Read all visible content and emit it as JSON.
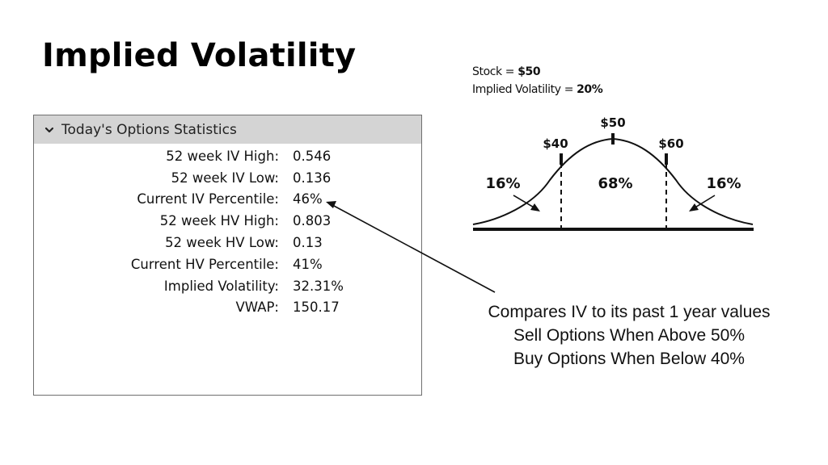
{
  "slide": {
    "title": "Implied Volatility"
  },
  "options_panel": {
    "header": "Today's Options Statistics",
    "rows": [
      {
        "label": "52 week IV High:",
        "value": "0.546"
      },
      {
        "label": "52 week IV Low:",
        "value": "0.136"
      },
      {
        "label": "Current IV Percentile:",
        "value": "46%"
      },
      {
        "label": "52 week HV High:",
        "value": "0.803"
      },
      {
        "label": "52 week HV Low:",
        "value": "0.13"
      },
      {
        "label": "Current HV Percentile:",
        "value": "41%"
      },
      {
        "label": "Implied Volatility:",
        "value": "32.31%"
      },
      {
        "label": "VWAP:",
        "value": "150.17"
      }
    ]
  },
  "bell_curve": {
    "stock_label": "Stock = ",
    "stock_value": "$50",
    "iv_label": "Implied Volatility = ",
    "iv_value": "20%",
    "price_low": "$40",
    "price_mid": "$50",
    "price_high": "$60",
    "pct_left": "16%",
    "pct_mid": "68%",
    "pct_right": "16%"
  },
  "note": {
    "line1": "Compares IV to its past 1 year values",
    "line2": "Sell Options When Above 50%",
    "line3": "Buy Options When Below 40%"
  }
}
